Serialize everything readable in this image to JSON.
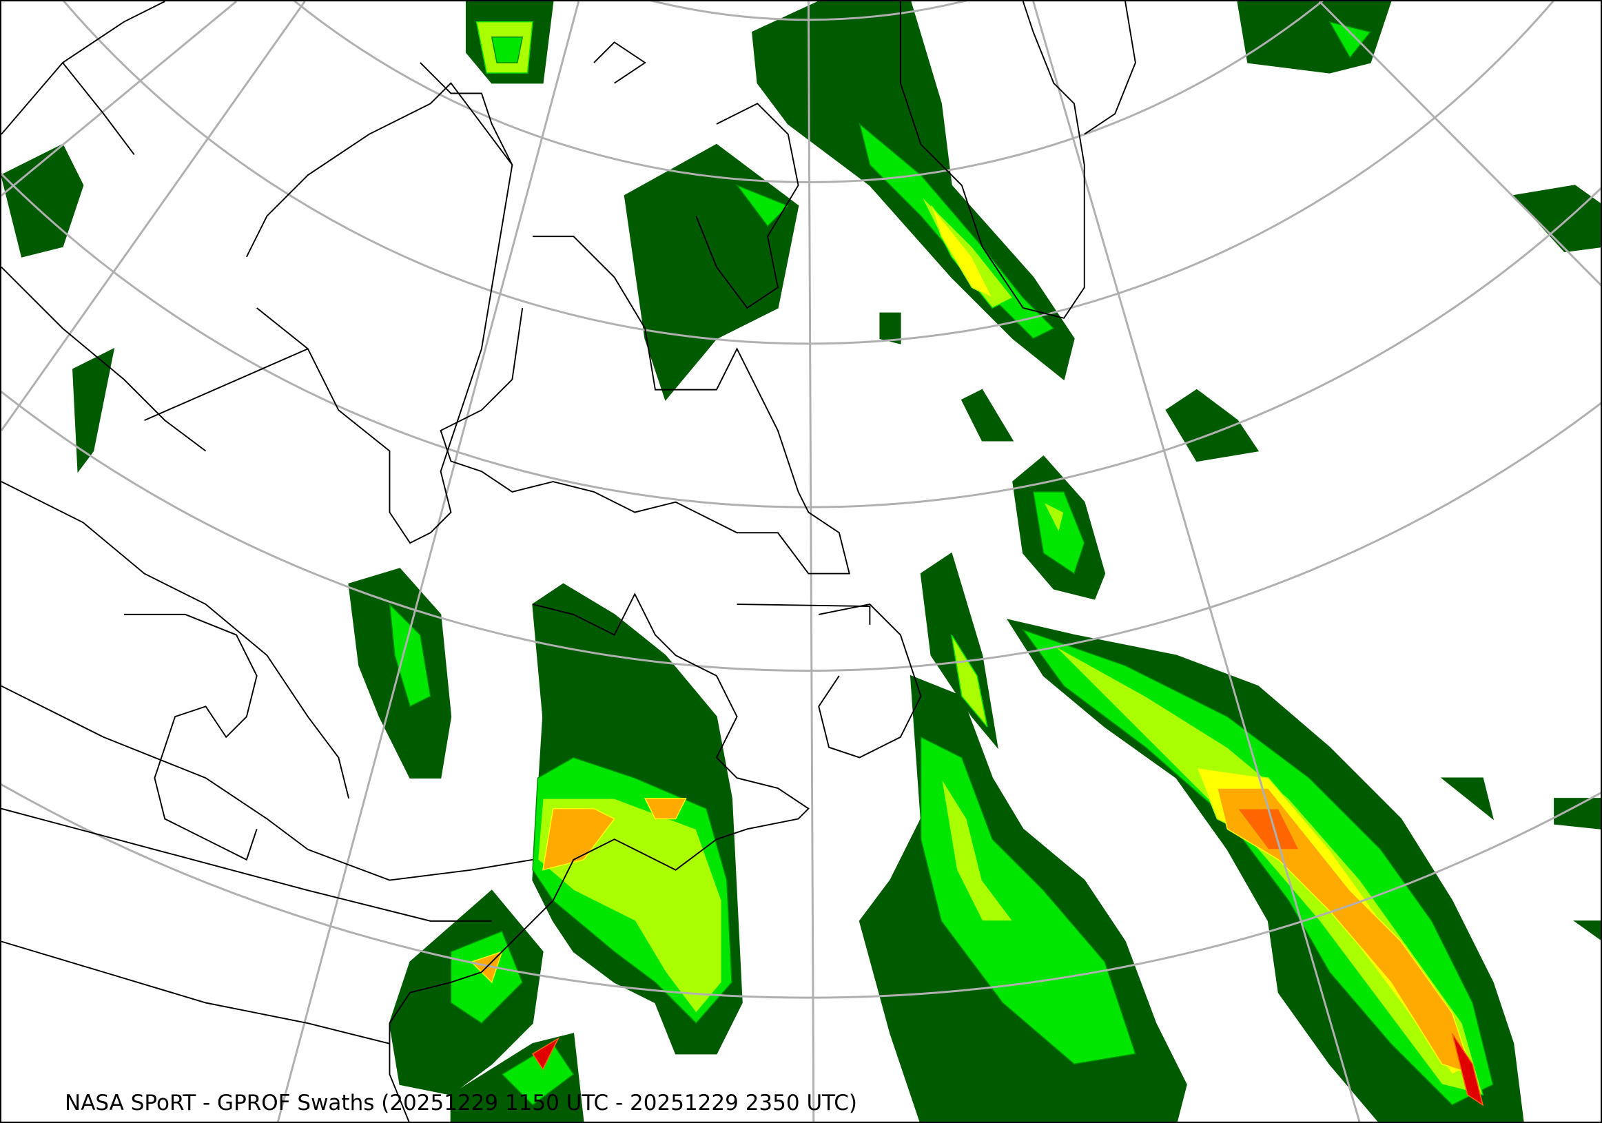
{
  "caption": "NASA SPoRT - GPROF Swaths (20251229 1150 UTC - 20251229 2350 UTC)",
  "map": {
    "projection_grid_color": "#b0b0b0",
    "coastline_color": "#000000",
    "background": "#ffffff",
    "precip_colors": [
      "#005a00",
      "#008c00",
      "#00e600",
      "#aaff00",
      "#ffff00",
      "#ffaa00",
      "#ff6600",
      "#e00000"
    ]
  }
}
